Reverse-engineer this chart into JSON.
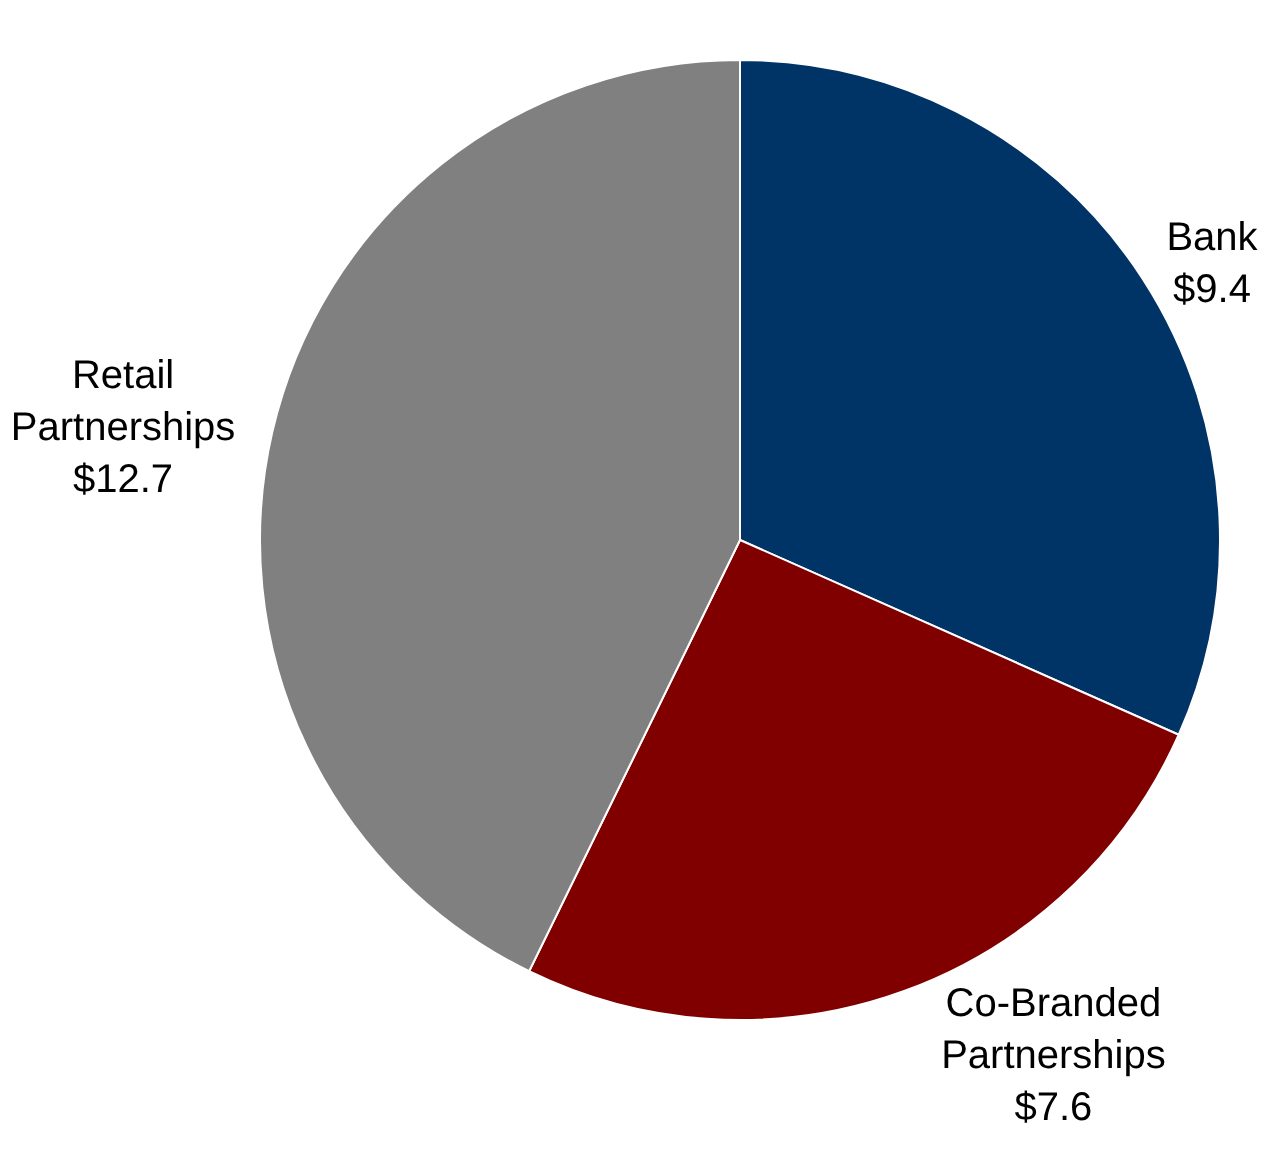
{
  "chart_data": {
    "type": "pie",
    "categories": [
      "Bank",
      "Co-Branded Partnerships",
      "Retail Partnerships"
    ],
    "values": [
      9.4,
      7.6,
      12.7
    ],
    "value_labels": [
      "$9.4",
      "$7.6",
      "$12.7"
    ],
    "colors": [
      "#003366",
      "#800000",
      "#808080"
    ],
    "legend": false
  }
}
